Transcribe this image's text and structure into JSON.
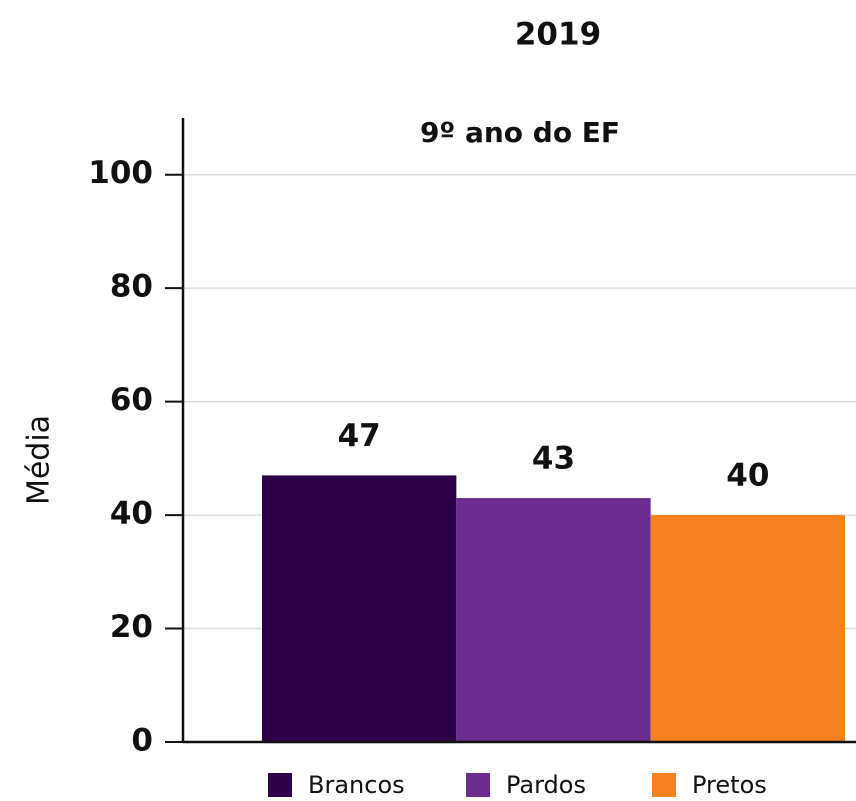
{
  "chart_data": {
    "type": "bar",
    "title": "2019",
    "categories": [
      "9º ano do EF"
    ],
    "y_label": "Média",
    "series": [
      {
        "name": "Brancos",
        "color": "#2e004b",
        "values": [
          47
        ]
      },
      {
        "name": "Pardos",
        "color": "#6b2c8f",
        "values": [
          43
        ]
      },
      {
        "name": "Pretos",
        "color": "#f5821f",
        "values": [
          40
        ]
      }
    ],
    "ylim": [
      0,
      110
    ],
    "yticks": [
      0,
      20,
      40,
      60,
      80,
      100
    ],
    "grid": true
  }
}
